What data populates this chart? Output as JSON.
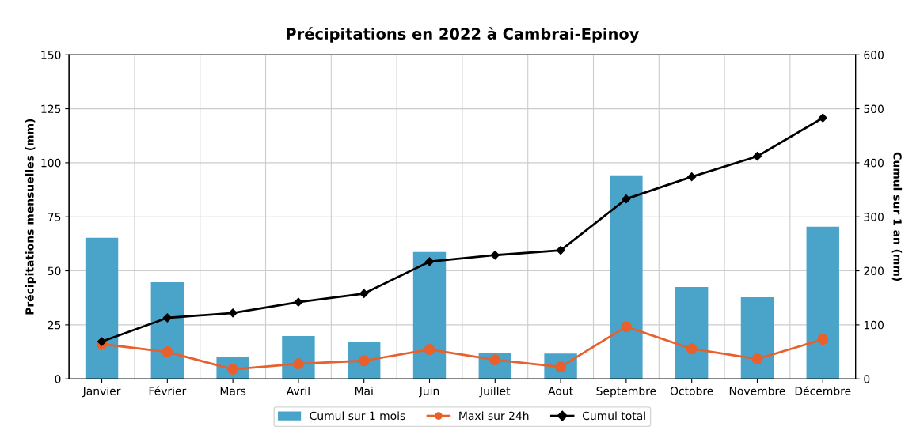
{
  "chart_data": {
    "type": "bar",
    "title": "Précipitations en 2022 à Cambrai-Epinoy",
    "categories": [
      "Janvier",
      "Février",
      "Mars",
      "Avril",
      "Mai",
      "Juin",
      "Juillet",
      "Aout",
      "Septembre",
      "Octobre",
      "Novembre",
      "Décembre"
    ],
    "series": [
      {
        "name": "Cumul sur 1 mois",
        "color": "#4aa3c8",
        "values": [
          65.3,
          44.7,
          10.3,
          19.8,
          17.2,
          58.7,
          12.1,
          11.7,
          94.2,
          42.5,
          37.8,
          70.4
        ]
      },
      {
        "name": "Maxi sur 24h",
        "type": "line",
        "color": "#e8602c",
        "marker": "circle",
        "values": [
          16.1,
          12.5,
          4.4,
          7.0,
          8.4,
          13.6,
          8.8,
          5.5,
          24.2,
          13.9,
          9.2,
          18.3
        ]
      },
      {
        "name": "Cumul total",
        "type": "line",
        "color": "#000000",
        "marker": "diamond",
        "axis": "y2",
        "values": [
          69,
          113,
          122,
          142,
          158,
          217,
          229,
          238,
          333,
          374,
          412,
          483
        ]
      }
    ],
    "ylabel": "Précipitations mensuelles (mm)",
    "y2label": "Cumul sur 1 an (mm)",
    "ylim": [
      0,
      150
    ],
    "yticks": [
      0,
      25,
      50,
      75,
      100,
      125,
      150
    ],
    "y2lim": [
      0,
      600
    ],
    "y2ticks": [
      0,
      100,
      200,
      300,
      400,
      500,
      600
    ],
    "grid": true,
    "legend": "bottom"
  }
}
